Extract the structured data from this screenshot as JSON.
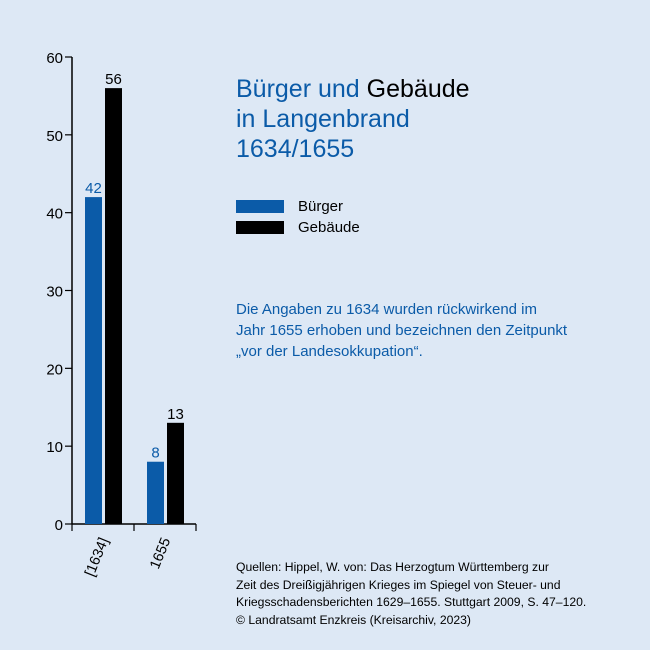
{
  "title": {
    "line1_blue": "Bürger und",
    "line1_black": "Gebäude",
    "line2": "in Langenbrand",
    "line3": "1634/1655"
  },
  "legend": [
    {
      "label": "Bürger",
      "color": "#0b5ba8"
    },
    {
      "label": "Gebäude",
      "color": "#000000"
    }
  ],
  "note": [
    "Die Angaben zu 1634 wurden rückwirkend im",
    "Jahr 1655 erhoben und bezeichnen den Zeitpunkt",
    "„vor der Landesokkupation“."
  ],
  "source": [
    "Quellen: Hippel, W. von: Das Herzogtum Württemberg zur",
    "Zeit des Dreißigjährigen Krieges im Spiegel von Steuer- und",
    "Kriegsschadensberichten 1629–1655. Stuttgart 2009, S. 47–120.",
    "© Landratsamt Enzkreis (Kreisarchiv, 2023)"
  ],
  "chart_data": {
    "type": "bar",
    "categories": [
      "[1634]",
      "1655"
    ],
    "series": [
      {
        "name": "Bürger",
        "values": [
          42,
          8
        ],
        "color": "#0b5ba8",
        "label_color": "#0b5ba8"
      },
      {
        "name": "Gebäude",
        "values": [
          56,
          13
        ],
        "color": "#000000",
        "label_color": "#000000"
      }
    ],
    "ylim": [
      0,
      60
    ],
    "yticks": [
      0,
      10,
      20,
      30,
      40,
      50,
      60
    ],
    "grid": false,
    "legend_position": "right"
  }
}
